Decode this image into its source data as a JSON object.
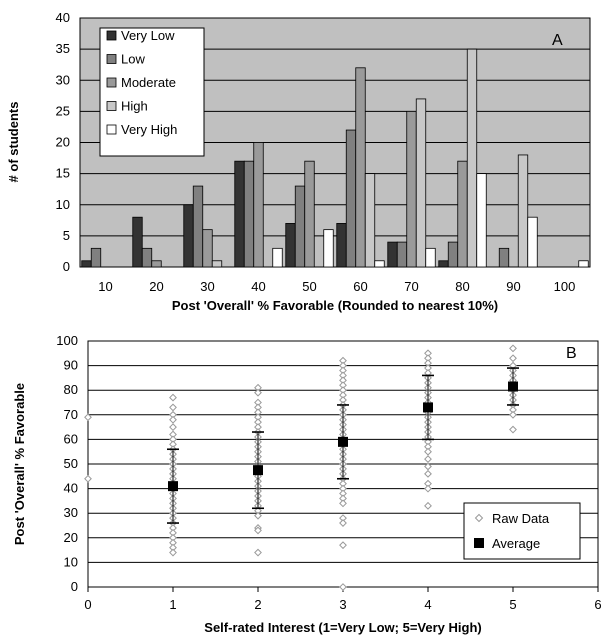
{
  "chart_data": [
    {
      "type": "bar",
      "panel_label": "A",
      "title": "",
      "xlabel": "Post 'Overall' % Favorable (Rounded to nearest 10%)",
      "ylabel": "# of students",
      "categories": [
        "10",
        "20",
        "30",
        "40",
        "50",
        "60",
        "70",
        "80",
        "90",
        "100"
      ],
      "ylim": [
        0,
        40
      ],
      "yticks": [
        0,
        5,
        10,
        15,
        20,
        25,
        30,
        35,
        40
      ],
      "grid": true,
      "legend_position": "top-left",
      "colors": {
        "plot_background": "#c0c0c0"
      },
      "series": [
        {
          "name": "Very Low",
          "color": "#333333",
          "values": [
            1,
            8,
            10,
            17,
            7,
            7,
            4,
            1,
            0,
            0
          ]
        },
        {
          "name": "Low",
          "color": "#808080",
          "values": [
            3,
            3,
            13,
            17,
            13,
            22,
            4,
            4,
            3,
            0
          ]
        },
        {
          "name": "Moderate",
          "color": "#9a9a9a",
          "values": [
            0,
            1,
            6,
            20,
            17,
            32,
            25,
            17,
            0,
            0
          ]
        },
        {
          "name": "High",
          "color": "#c8c8c8",
          "values": [
            0,
            0,
            1,
            0,
            0,
            15,
            27,
            35,
            18,
            0
          ]
        },
        {
          "name": "Very High",
          "color": "#ffffff",
          "values": [
            0,
            0,
            0,
            3,
            6,
            1,
            3,
            15,
            8,
            1
          ]
        }
      ]
    },
    {
      "type": "scatter",
      "panel_label": "B",
      "title": "",
      "xlabel": "Self-rated Interest (1=Very Low; 5=Very High)",
      "ylabel": "Post 'Overall' % Favorable",
      "xlim": [
        0,
        6
      ],
      "ylim": [
        0,
        100
      ],
      "xticks": [
        0,
        1,
        2,
        3,
        4,
        5,
        6
      ],
      "yticks": [
        0,
        10,
        20,
        30,
        40,
        50,
        60,
        70,
        80,
        90,
        100
      ],
      "grid": true,
      "legend_position": "bottom-right",
      "series": [
        {
          "name": "Raw Data",
          "marker": "open-diamond",
          "color": "#999999",
          "points": [
            [
              0,
              69
            ],
            [
              0,
              44
            ],
            [
              1,
              77
            ],
            [
              1,
              73
            ],
            [
              1,
              70
            ],
            [
              1,
              68
            ],
            [
              1,
              65
            ],
            [
              1,
              62
            ],
            [
              1,
              60
            ],
            [
              1,
              58
            ],
            [
              1,
              56
            ],
            [
              1,
              54
            ],
            [
              1,
              52
            ],
            [
              1,
              50
            ],
            [
              1,
              48
            ],
            [
              1,
              46
            ],
            [
              1,
              44
            ],
            [
              1,
              42
            ],
            [
              1,
              40
            ],
            [
              1,
              38
            ],
            [
              1,
              36
            ],
            [
              1,
              34
            ],
            [
              1,
              32
            ],
            [
              1,
              30
            ],
            [
              1,
              28
            ],
            [
              1,
              26
            ],
            [
              1,
              24
            ],
            [
              1,
              22
            ],
            [
              1,
              20
            ],
            [
              1,
              18
            ],
            [
              1,
              16
            ],
            [
              1,
              14
            ],
            [
              2,
              81
            ],
            [
              2,
              79
            ],
            [
              2,
              75
            ],
            [
              2,
              73
            ],
            [
              2,
              71
            ],
            [
              2,
              69
            ],
            [
              2,
              67
            ],
            [
              2,
              65
            ],
            [
              2,
              63
            ],
            [
              2,
              61
            ],
            [
              2,
              59
            ],
            [
              2,
              57
            ],
            [
              2,
              55
            ],
            [
              2,
              53
            ],
            [
              2,
              51
            ],
            [
              2,
              49
            ],
            [
              2,
              47
            ],
            [
              2,
              45
            ],
            [
              2,
              43
            ],
            [
              2,
              41
            ],
            [
              2,
              39
            ],
            [
              2,
              37
            ],
            [
              2,
              35
            ],
            [
              2,
              33
            ],
            [
              2,
              31
            ],
            [
              2,
              29
            ],
            [
              2,
              24
            ],
            [
              2,
              23
            ],
            [
              2,
              14
            ],
            [
              3,
              92
            ],
            [
              3,
              90
            ],
            [
              3,
              88
            ],
            [
              3,
              86
            ],
            [
              3,
              84
            ],
            [
              3,
              82
            ],
            [
              3,
              80
            ],
            [
              3,
              78
            ],
            [
              3,
              76
            ],
            [
              3,
              74
            ],
            [
              3,
              72
            ],
            [
              3,
              70
            ],
            [
              3,
              68
            ],
            [
              3,
              66
            ],
            [
              3,
              64
            ],
            [
              3,
              62
            ],
            [
              3,
              60
            ],
            [
              3,
              58
            ],
            [
              3,
              56
            ],
            [
              3,
              54
            ],
            [
              3,
              52
            ],
            [
              3,
              50
            ],
            [
              3,
              48
            ],
            [
              3,
              46
            ],
            [
              3,
              44
            ],
            [
              3,
              42
            ],
            [
              3,
              40
            ],
            [
              3,
              38
            ],
            [
              3,
              36
            ],
            [
              3,
              34
            ],
            [
              3,
              28
            ],
            [
              3,
              26
            ],
            [
              3,
              17
            ],
            [
              3,
              0
            ],
            [
              4,
              95
            ],
            [
              4,
              93
            ],
            [
              4,
              91
            ],
            [
              4,
              89
            ],
            [
              4,
              87
            ],
            [
              4,
              85
            ],
            [
              4,
              83
            ],
            [
              4,
              81
            ],
            [
              4,
              79
            ],
            [
              4,
              77
            ],
            [
              4,
              75
            ],
            [
              4,
              73
            ],
            [
              4,
              71
            ],
            [
              4,
              69
            ],
            [
              4,
              67
            ],
            [
              4,
              65
            ],
            [
              4,
              63
            ],
            [
              4,
              61
            ],
            [
              4,
              59
            ],
            [
              4,
              57
            ],
            [
              4,
              55
            ],
            [
              4,
              52
            ],
            [
              4,
              49
            ],
            [
              4,
              46
            ],
            [
              4,
              42
            ],
            [
              4,
              40
            ],
            [
              4,
              33
            ],
            [
              5,
              97
            ],
            [
              5,
              93
            ],
            [
              5,
              90
            ],
            [
              5,
              88
            ],
            [
              5,
              86
            ],
            [
              5,
              84
            ],
            [
              5,
              82
            ],
            [
              5,
              80
            ],
            [
              5,
              78
            ],
            [
              5,
              76
            ],
            [
              5,
              74
            ],
            [
              5,
              72
            ],
            [
              5,
              70
            ],
            [
              5,
              64
            ]
          ]
        },
        {
          "name": "Average",
          "marker": "filled-square",
          "color": "#000000",
          "points": [
            [
              1,
              41
            ],
            [
              2,
              47.5
            ],
            [
              3,
              59
            ],
            [
              4,
              73
            ],
            [
              5,
              81.5
            ]
          ],
          "error_bars": [
            [
              26,
              56
            ],
            [
              32,
              63
            ],
            [
              44,
              74
            ],
            [
              60,
              86
            ],
            [
              74,
              89
            ]
          ]
        }
      ]
    }
  ]
}
